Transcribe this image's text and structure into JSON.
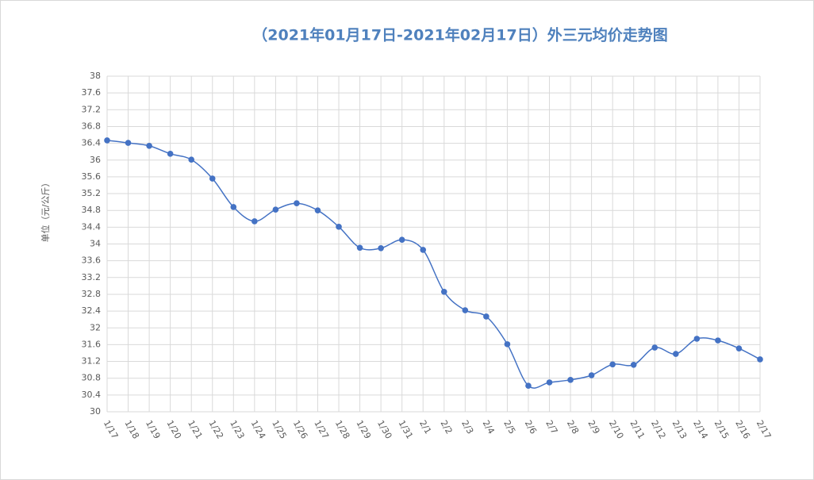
{
  "chart_data": {
    "type": "line",
    "title": "（2021年01月17日-2021年02月17日）外三元均价走势图",
    "y_label": "单位（元/公斤）",
    "categories": [
      "1/17",
      "1/18",
      "1/19",
      "1/20",
      "1/21",
      "1/22",
      "1/23",
      "1/24",
      "1/25",
      "1/26",
      "1/27",
      "1/28",
      "1/29",
      "1/30",
      "1/31",
      "2/1",
      "2/2",
      "2/3",
      "2/4",
      "2/5",
      "2/6",
      "2/7",
      "2/8",
      "2/9",
      "2/10",
      "2/11",
      "2/12",
      "2/13",
      "2/14",
      "2/15",
      "2/16",
      "2/17"
    ],
    "values": [
      36.47,
      36.41,
      36.34,
      36.15,
      36.01,
      35.56,
      34.88,
      34.54,
      34.82,
      34.97,
      34.8,
      34.41,
      33.91,
      33.9,
      34.1,
      33.86,
      32.86,
      32.42,
      32.27,
      31.61,
      30.62,
      30.7,
      30.76,
      30.87,
      31.13,
      31.12,
      31.53,
      31.38,
      31.74,
      31.7,
      31.51,
      31.25
    ],
    "color": "#4472c4",
    "ylim": [
      30,
      38
    ],
    "yticks": [
      30,
      30.4,
      30.8,
      31.2,
      31.6,
      32,
      32.4,
      32.8,
      33.2,
      33.6,
      34,
      34.4,
      34.8,
      35.2,
      35.6,
      36,
      36.4,
      36.8,
      37.2,
      37.6,
      38
    ],
    "grid": true,
    "smooth": true
  }
}
